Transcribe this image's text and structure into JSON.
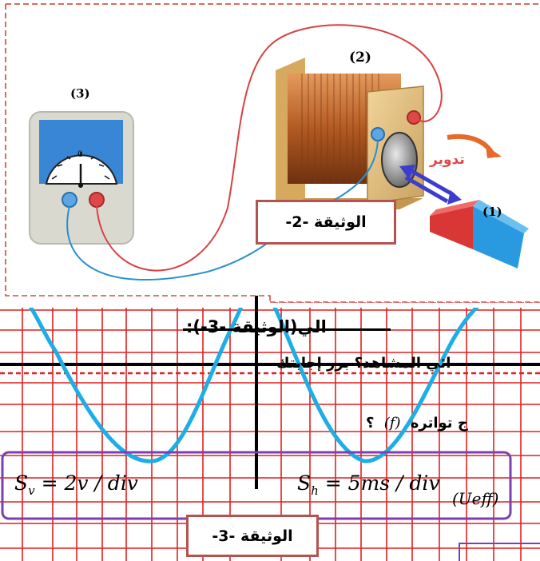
{
  "doc2": {
    "label": "الوثيقة -2-",
    "num_galvanometer": "(3)",
    "num_coil": "(2)",
    "num_magnet": "(1)",
    "rotation_label": "تدوير",
    "dial_zero": "0"
  },
  "doc3": {
    "label": "الوثيقة -3-",
    "sv": "S",
    "sv_sub": "v",
    "sv_rest": " = 2v / div",
    "sh": "S",
    "sh_sub": "h",
    "sh_rest": " = 5ms / div",
    "ueff": "(Ueff)"
  },
  "question_lines": {
    "line1": "الي(الوثيقة -3-):",
    "line2": "ائي المشاهد؟ برر إجابتك",
    "line3": "ج تواتره",
    "line3_f": "(f)",
    "line3_q": "؟"
  },
  "colors": {
    "grid": "#e31f1f",
    "signal": "#1eaee6",
    "frame_doc2": "#d9534f",
    "frame_doc3_scales": "#7b3fb0",
    "label_border": "#b5524f"
  },
  "signal": {
    "type": "sinusoid",
    "peak_to_peak_divisions": 8
  }
}
